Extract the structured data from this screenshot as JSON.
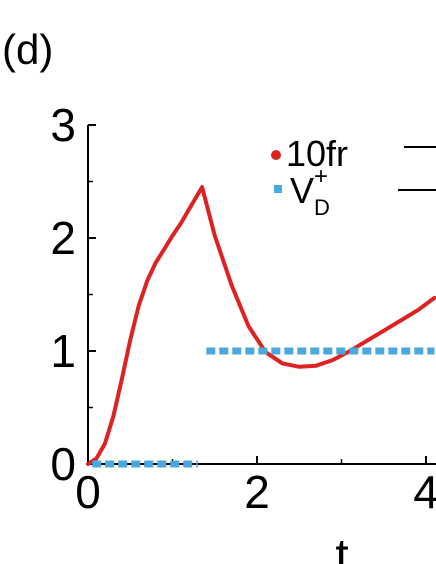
{
  "panel_label": "(d)",
  "chart_data": {
    "type": "line",
    "xlabel": "t",
    "ylabel": "",
    "xlim": [
      0,
      4.1
    ],
    "ylim": [
      0,
      3
    ],
    "x_ticks": [
      "0",
      "2",
      "4"
    ],
    "y_ticks": [
      "0",
      "1",
      "2",
      "3"
    ],
    "legend_position": "top-right",
    "grid": false,
    "series": [
      {
        "name": "10fr",
        "color": "#dd2222",
        "style": "solid",
        "x": [
          0.0,
          0.1,
          0.2,
          0.3,
          0.4,
          0.5,
          0.6,
          0.7,
          0.8,
          0.9,
          1.0,
          1.1,
          1.2,
          1.35,
          1.5,
          1.7,
          1.9,
          2.1,
          2.3,
          2.5,
          2.7,
          2.9,
          3.1,
          3.3,
          3.5,
          3.7,
          3.9,
          4.1
        ],
        "y": [
          0.0,
          0.05,
          0.18,
          0.42,
          0.75,
          1.1,
          1.4,
          1.62,
          1.78,
          1.9,
          2.02,
          2.13,
          2.26,
          2.45,
          2.02,
          1.58,
          1.22,
          0.99,
          0.89,
          0.86,
          0.87,
          0.92,
          1.0,
          1.09,
          1.18,
          1.27,
          1.36,
          1.47
        ]
      },
      {
        "name": "V_D^+",
        "legend_main": "V",
        "legend_sup": "+",
        "legend_sub": "D",
        "color": "#4aa8dc",
        "style": "dashed",
        "segments": [
          {
            "x": [
              0.05,
              1.3
            ],
            "y": [
              0,
              0
            ]
          },
          {
            "x": [
              1.4,
              4.1
            ],
            "y": [
              1,
              1
            ]
          }
        ]
      }
    ]
  }
}
